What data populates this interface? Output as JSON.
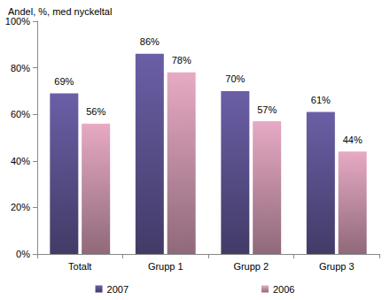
{
  "chart_data": {
    "type": "bar",
    "title": "Andel, %, med nyckeltal",
    "categories": [
      "Totalt",
      "Grupp 1",
      "Grupp 2",
      "Grupp 3"
    ],
    "series": [
      {
        "name": "2007",
        "color": "#6a5fa6",
        "values": [
          69,
          86,
          70,
          61
        ],
        "value_labels": [
          "69%",
          "86%",
          "70%",
          "61%"
        ]
      },
      {
        "name": "2006",
        "color": "#e7aac4",
        "values": [
          56,
          78,
          57,
          44
        ],
        "value_labels": [
          "56%",
          "78%",
          "57%",
          "44%"
        ]
      }
    ],
    "ylim": [
      0,
      100
    ],
    "yticks": [
      {
        "value": 0,
        "label": "0%"
      },
      {
        "value": 20,
        "label": "20%"
      },
      {
        "value": 40,
        "label": "40%"
      },
      {
        "value": 60,
        "label": "60%"
      },
      {
        "value": 80,
        "label": "80%"
      },
      {
        "value": 100,
        "label": "100%"
      }
    ],
    "grid": false,
    "legend": "bottom",
    "data_labels": true
  }
}
